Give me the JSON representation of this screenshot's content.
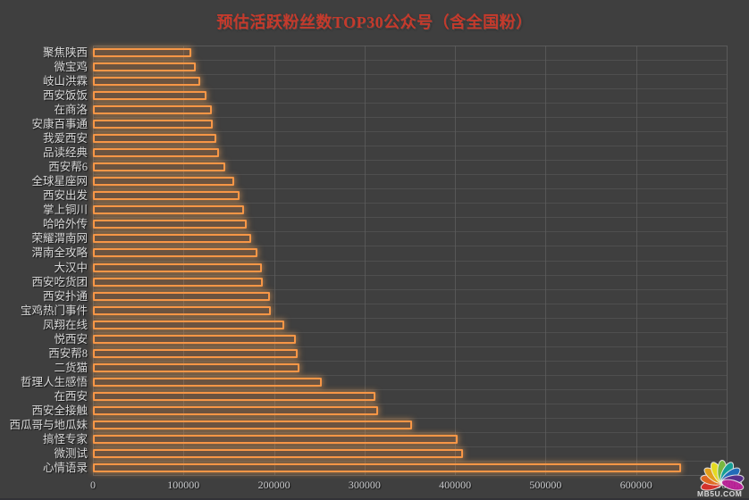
{
  "page": {
    "background": "#3f3f3f"
  },
  "watermark": {
    "text": "MB5U.COM",
    "petal_colors": [
      "#e0312c",
      "#ec6b1f",
      "#f0a818",
      "#f2e81f",
      "#7dc242",
      "#12a79d",
      "#1f6fc4",
      "#5b2d91",
      "#c0219c"
    ]
  },
  "chart_data": {
    "type": "bar",
    "orientation": "horizontal",
    "title": "预估活跃粉丝数TOP30公众号（含全国粉）",
    "title_color": "#c53a2c",
    "categories": [
      "聚焦陕西",
      "微宝鸡",
      "岐山洪霖",
      "西安饭饭",
      "在商洛",
      "安康百事通",
      "我爱西安",
      "品读经典",
      "西安帮6",
      "全球星座网",
      "西安出发",
      "掌上铜川",
      "哈哈外传",
      "荣耀渭南网",
      "渭南全攻略",
      "大汉中",
      "西安吃货团",
      "西安扑通",
      "宝鸡热门事件",
      "凤翔在线",
      "悦西安",
      "西安帮8",
      "二货猫",
      "哲理人生感悟",
      "在西安",
      "西安全接触",
      "西瓜哥与地瓜妹",
      "搞怪专家",
      "微测试",
      "心情语录"
    ],
    "values": [
      109000,
      113000,
      118000,
      125000,
      131000,
      132000,
      136000,
      139000,
      146000,
      156000,
      162000,
      167000,
      170000,
      175000,
      182000,
      187000,
      188000,
      195000,
      196000,
      211000,
      224000,
      226000,
      228000,
      253000,
      312000,
      315000,
      352000,
      403000,
      409000,
      650000
    ],
    "xlabel": "",
    "ylabel": "",
    "xlim": [
      0,
      700000
    ],
    "x_ticks": [
      "0",
      "100000",
      "200000",
      "300000",
      "400000",
      "500000",
      "600000",
      "700000"
    ],
    "grid": true,
    "legend": "none",
    "bar_border_color": "#f79646",
    "bar_fill_color": "rgba(247,150,70,0.24)",
    "gridline_color": "#5c5c5c",
    "axis_label_color": "#c9cacd",
    "category_label_color": "#d9d9d9"
  }
}
